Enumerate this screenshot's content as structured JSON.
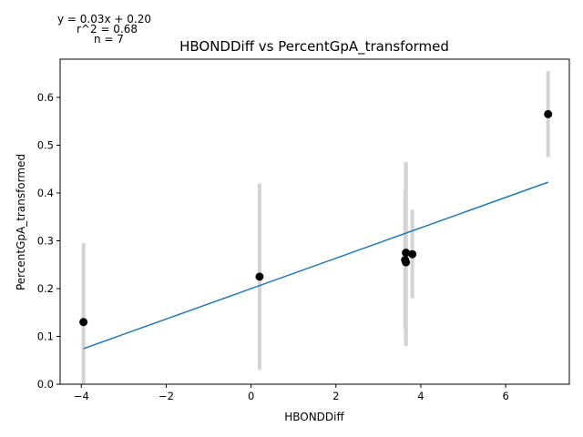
{
  "chart_data": {
    "type": "scatter",
    "title": "HBONDDiff vs PercentGpA_transformed",
    "xlabel": "HBONDDiff",
    "ylabel": "PercentGpA_transformed",
    "xlim": [
      -4.5,
      7.5
    ],
    "ylim": [
      0.0,
      0.68
    ],
    "xticks": [
      -4,
      -2,
      0,
      2,
      4,
      6
    ],
    "xtick_labels": [
      "−4",
      "−2",
      "0",
      "2",
      "4",
      "6"
    ],
    "yticks": [
      0.0,
      0.1,
      0.2,
      0.3,
      0.4,
      0.5,
      0.6
    ],
    "ytick_labels": [
      "0.0",
      "0.1",
      "0.2",
      "0.3",
      "0.4",
      "0.5",
      "0.6"
    ],
    "grid": false,
    "points": [
      {
        "x": -3.95,
        "y": 0.13,
        "err_low": 0.0,
        "err_high": 0.295
      },
      {
        "x": 0.2,
        "y": 0.225,
        "err_low": 0.03,
        "err_high": 0.42
      },
      {
        "x": 3.63,
        "y": 0.26,
        "err_low": 0.115,
        "err_high": 0.405
      },
      {
        "x": 3.65,
        "y": 0.255,
        "err_low": 0.08,
        "err_high": 0.465
      },
      {
        "x": 3.65,
        "y": 0.275,
        "err_low": 0.08,
        "err_high": 0.465
      },
      {
        "x": 3.8,
        "y": 0.272,
        "err_low": 0.18,
        "err_high": 0.365
      },
      {
        "x": 7.0,
        "y": 0.565,
        "err_low": 0.475,
        "err_high": 0.655
      }
    ],
    "fit_line": {
      "x_start": -3.95,
      "x_end": 7.0,
      "slope": 0.0318,
      "intercept": 0.2
    },
    "annotations": {
      "equation": "y = 0.03x + 0.20",
      "r_squared": "r^2 = 0.68",
      "n": "n = 7"
    },
    "colors": {
      "points": "#000000",
      "errorbars": "#d3d3d3",
      "fit_line": "#1f77b4",
      "axes": "#000000"
    }
  }
}
